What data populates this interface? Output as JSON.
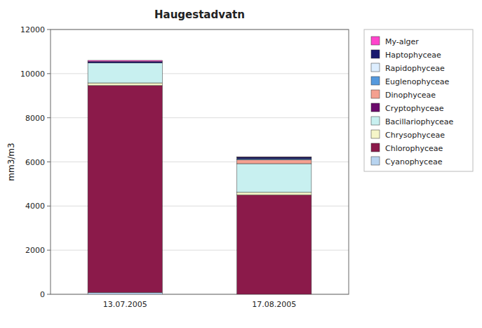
{
  "chart_data": {
    "type": "bar",
    "stacked": true,
    "title": "Haugestadvatn",
    "y_label": "mm3/m3",
    "categories": [
      "13.07.2005",
      "17.08.2005"
    ],
    "series": [
      {
        "name": "Cyanophyceae",
        "color": "#b8d4f0",
        "values": [
          80,
          0
        ]
      },
      {
        "name": "Chlorophyceae",
        "color": "#8B1A4A",
        "values": [
          9380,
          4500
        ]
      },
      {
        "name": "Chrysophyceae",
        "color": "#f5f5c8",
        "values": [
          120,
          120
        ]
      },
      {
        "name": "Bacillariophyceae",
        "color": "#c8f0f0",
        "values": [
          900,
          1300
        ]
      },
      {
        "name": "Cryptophyceae",
        "color": "#6b0a6b",
        "values": [
          0,
          0
        ]
      },
      {
        "name": "Dinophyceae",
        "color": "#f4a090",
        "values": [
          0,
          170
        ]
      },
      {
        "name": "Euglenophyceae",
        "color": "#5599dd",
        "values": [
          0,
          50
        ]
      },
      {
        "name": "Rapidophyceae",
        "color": "#ddeeff",
        "values": [
          0,
          0
        ]
      },
      {
        "name": "Haptophyceae",
        "color": "#1a1a6e",
        "values": [
          70,
          70
        ]
      },
      {
        "name": "My-alger",
        "color": "#ff44cc",
        "values": [
          50,
          20
        ]
      }
    ],
    "ylim": [
      0,
      12000
    ],
    "yticks": [
      0,
      2000,
      4000,
      6000,
      8000,
      10000,
      12000
    ],
    "grid": true,
    "legend": "right"
  }
}
